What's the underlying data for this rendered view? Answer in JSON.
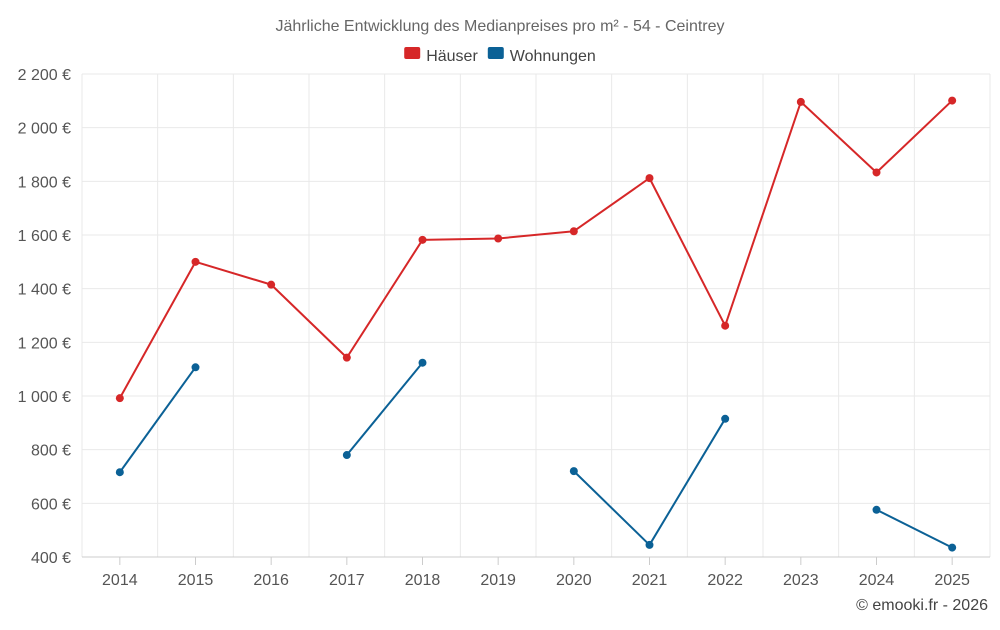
{
  "chart_data": {
    "type": "line",
    "title": "Jährliche Entwicklung des Medianpreises pro m² - 54 - Ceintrey",
    "categories": [
      "2014",
      "2015",
      "2016",
      "2017",
      "2018",
      "2019",
      "2020",
      "2021",
      "2022",
      "2023",
      "2024",
      "2025"
    ],
    "series": [
      {
        "name": "Häuser",
        "color": "#d62728",
        "values": [
          992,
          1500,
          1415,
          1143,
          1582,
          1587,
          1614,
          1812,
          1262,
          2096,
          1833,
          2101
        ]
      },
      {
        "name": "Wohnungen",
        "color": "#0b6196",
        "values": [
          716,
          1107,
          null,
          780,
          1124,
          null,
          720,
          445,
          915,
          null,
          576,
          435
        ]
      }
    ],
    "ylim": [
      400,
      2200
    ],
    "yticks": [
      400,
      600,
      800,
      1000,
      1200,
      1400,
      1600,
      1800,
      2000,
      2200
    ],
    "ytick_labels": [
      "400 €",
      "600 €",
      "800 €",
      "1 000 €",
      "1 200 €",
      "1 400 €",
      "1 600 €",
      "1 800 €",
      "2 000 €",
      "2 200 €"
    ],
    "xlabel": "",
    "ylabel": "",
    "grid": true,
    "legend_position": "top-center",
    "credit": "© emooki.fr - 2026"
  }
}
